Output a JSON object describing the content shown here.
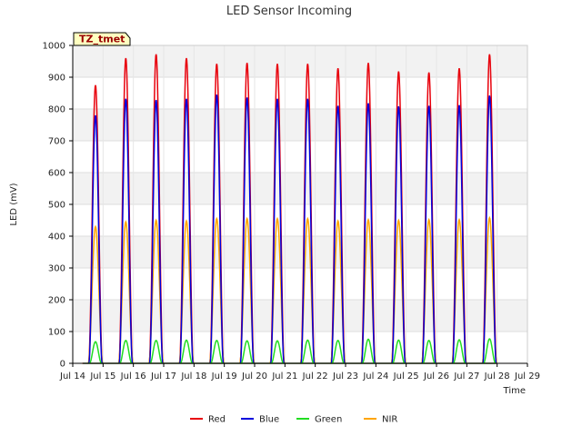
{
  "chart_data": {
    "type": "line",
    "title": "LED Sensor Incoming",
    "xlabel": "Time",
    "ylabel": "LED (mV)",
    "ylim": [
      0,
      1000
    ],
    "yticks": [
      0,
      100,
      200,
      300,
      400,
      500,
      600,
      700,
      800,
      900,
      1000
    ],
    "xlim_days": [
      14,
      29
    ],
    "xticks": [
      "Jul 14",
      "Jul 15",
      "Jul 16",
      "Jul 17",
      "Jul 18",
      "Jul 19",
      "Jul 20",
      "Jul 21",
      "Jul 22",
      "Jul 23",
      "Jul 24",
      "Jul 25",
      "Jul 26",
      "Jul 27",
      "Jul 28",
      "Jul 29"
    ],
    "grid": true,
    "legend_position": "bottom",
    "annotation": "TZ_tmet",
    "series": [
      {
        "name": "Red",
        "color": "#e8000b",
        "peaks": [
          {
            "day": 14.75,
            "value": 875
          },
          {
            "day": 15.75,
            "value": 960
          },
          {
            "day": 16.75,
            "value": 972
          },
          {
            "day": 17.75,
            "value": 960
          },
          {
            "day": 18.75,
            "value": 942
          },
          {
            "day": 19.75,
            "value": 945
          },
          {
            "day": 20.75,
            "value": 942
          },
          {
            "day": 21.75,
            "value": 942
          },
          {
            "day": 22.75,
            "value": 928
          },
          {
            "day": 23.75,
            "value": 945
          },
          {
            "day": 24.75,
            "value": 918
          },
          {
            "day": 25.75,
            "value": 915
          },
          {
            "day": 26.75,
            "value": 928
          },
          {
            "day": 27.75,
            "value": 972
          }
        ]
      },
      {
        "name": "Blue",
        "color": "#0000dd",
        "peaks": [
          {
            "day": 14.75,
            "value": 780
          },
          {
            "day": 15.75,
            "value": 832
          },
          {
            "day": 16.75,
            "value": 828
          },
          {
            "day": 17.75,
            "value": 832
          },
          {
            "day": 18.75,
            "value": 845
          },
          {
            "day": 19.75,
            "value": 836
          },
          {
            "day": 20.75,
            "value": 832
          },
          {
            "day": 21.75,
            "value": 832
          },
          {
            "day": 22.75,
            "value": 810
          },
          {
            "day": 23.75,
            "value": 818
          },
          {
            "day": 24.75,
            "value": 808
          },
          {
            "day": 25.75,
            "value": 810
          },
          {
            "day": 26.75,
            "value": 812
          },
          {
            "day": 27.75,
            "value": 842
          }
        ]
      },
      {
        "name": "Green",
        "color": "#22dd22",
        "peaks": [
          {
            "day": 14.75,
            "value": 68
          },
          {
            "day": 15.75,
            "value": 72
          },
          {
            "day": 16.75,
            "value": 72
          },
          {
            "day": 17.75,
            "value": 73
          },
          {
            "day": 18.75,
            "value": 72
          },
          {
            "day": 19.75,
            "value": 71
          },
          {
            "day": 20.75,
            "value": 71
          },
          {
            "day": 21.75,
            "value": 73
          },
          {
            "day": 22.75,
            "value": 72
          },
          {
            "day": 23.75,
            "value": 76
          },
          {
            "day": 24.75,
            "value": 73
          },
          {
            "day": 25.75,
            "value": 72
          },
          {
            "day": 26.75,
            "value": 74
          },
          {
            "day": 27.75,
            "value": 77
          }
        ]
      },
      {
        "name": "NIR",
        "color": "#ffa500",
        "peaks": [
          {
            "day": 14.75,
            "value": 430
          },
          {
            "day": 15.75,
            "value": 445
          },
          {
            "day": 16.75,
            "value": 450
          },
          {
            "day": 17.75,
            "value": 448
          },
          {
            "day": 18.75,
            "value": 455
          },
          {
            "day": 19.75,
            "value": 455
          },
          {
            "day": 20.75,
            "value": 455
          },
          {
            "day": 21.75,
            "value": 455
          },
          {
            "day": 22.75,
            "value": 448
          },
          {
            "day": 23.75,
            "value": 452
          },
          {
            "day": 24.75,
            "value": 450
          },
          {
            "day": 25.75,
            "value": 452
          },
          {
            "day": 26.75,
            "value": 452
          },
          {
            "day": 27.75,
            "value": 458
          }
        ]
      }
    ]
  }
}
